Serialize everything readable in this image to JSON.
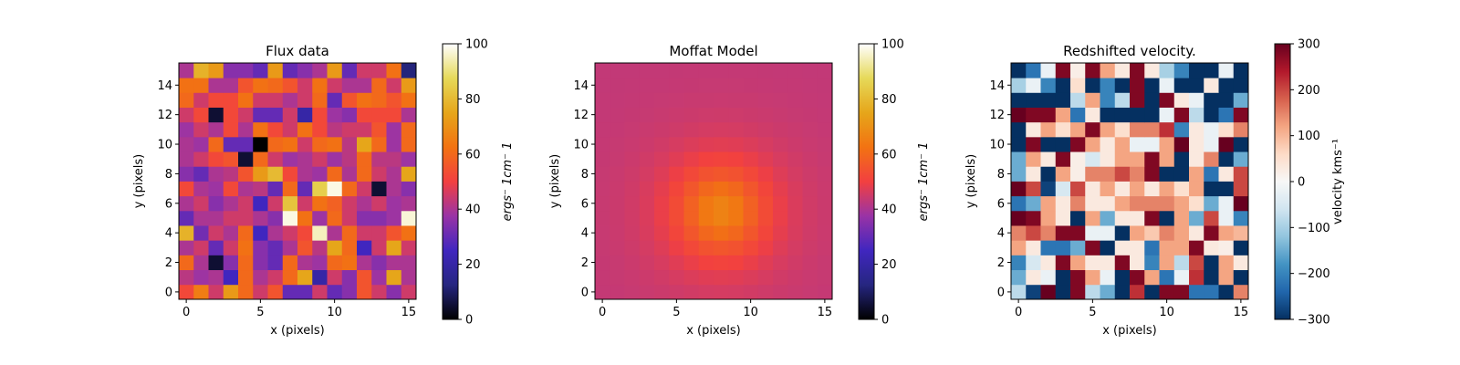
{
  "chart_data": [
    {
      "type": "heatmap",
      "title": "Flux data",
      "xlabel": "x (pixels)",
      "ylabel": "y (pixels)",
      "colorbar_label": "ergs^-1cm^-1",
      "colorbar_label_display": "ergs⁻ 1cm⁻ 1",
      "colormap": "CMRmap",
      "clim": [
        0,
        100
      ],
      "colorbar_ticks": [
        0,
        20,
        40,
        60,
        80,
        100
      ],
      "xlim": [
        -0.5,
        15.5
      ],
      "ylim": [
        -0.5,
        15.5
      ],
      "xticks": [
        0,
        5,
        10,
        15
      ],
      "yticks": [
        0,
        2,
        4,
        6,
        8,
        10,
        12,
        14
      ],
      "grid": false,
      "rows_bottom_to_top": [
        [
          52,
          65,
          45,
          72,
          60,
          45,
          55,
          30,
          30,
          45,
          30,
          35,
          55,
          45,
          35,
          45
        ],
        [
          42,
          38,
          40,
          25,
          60,
          40,
          45,
          60,
          75,
          20,
          45,
          35,
          55,
          38,
          75,
          40
        ],
        [
          60,
          40,
          5,
          35,
          60,
          35,
          30,
          60,
          40,
          38,
          60,
          62,
          40,
          35,
          40,
          40
        ],
        [
          40,
          45,
          30,
          45,
          62,
          35,
          30,
          40,
          55,
          42,
          75,
          60,
          25,
          45,
          75,
          45
        ],
        [
          78,
          32,
          45,
          40,
          60,
          25,
          40,
          45,
          52,
          95,
          40,
          60,
          45,
          45,
          55,
          62
        ],
        [
          30,
          40,
          40,
          45,
          45,
          40,
          35,
          98,
          62,
          38,
          60,
          45,
          35,
          35,
          38,
          97
        ],
        [
          40,
          45,
          35,
          40,
          45,
          25,
          45,
          82,
          45,
          62,
          58,
          45,
          40,
          45,
          38,
          40
        ],
        [
          52,
          40,
          38,
          52,
          40,
          42,
          30,
          60,
          30,
          85,
          98,
          60,
          45,
          5,
          40,
          35
        ],
        [
          35,
          30,
          40,
          42,
          55,
          72,
          80,
          52,
          40,
          38,
          60,
          40,
          60,
          45,
          40,
          75
        ],
        [
          40,
          45,
          52,
          55,
          5,
          60,
          45,
          38,
          40,
          45,
          38,
          42,
          60,
          42,
          42,
          38
        ],
        [
          40,
          38,
          60,
          30,
          30,
          0,
          60,
          62,
          45,
          60,
          62,
          42,
          75,
          60,
          38,
          60
        ],
        [
          38,
          45,
          40,
          52,
          40,
          62,
          52,
          45,
          62,
          52,
          42,
          45,
          45,
          55,
          38,
          60
        ],
        [
          45,
          52,
          5,
          52,
          45,
          30,
          30,
          45,
          20,
          52,
          38,
          35,
          52,
          52,
          52,
          40
        ],
        [
          60,
          45,
          52,
          52,
          62,
          45,
          45,
          40,
          45,
          60,
          30,
          55,
          62,
          60,
          55,
          62
        ],
        [
          62,
          62,
          40,
          40,
          55,
          62,
          60,
          55,
          45,
          62,
          45,
          40,
          40,
          60,
          45,
          72
        ],
        [
          40,
          78,
          72,
          35,
          35,
          30,
          72,
          30,
          35,
          40,
          72,
          30,
          45,
          45,
          62,
          12
        ]
      ]
    },
    {
      "type": "heatmap",
      "title": "Moffat Model",
      "xlabel": "x (pixels)",
      "ylabel": "y (pixels)",
      "colorbar_label": "ergs^-1cm^-1",
      "colorbar_label_display": "ergs⁻ 1cm⁻ 1",
      "colormap": "CMRmap",
      "clim": [
        0,
        100
      ],
      "colorbar_ticks": [
        0,
        20,
        40,
        60,
        80,
        100
      ],
      "xlim": [
        -0.5,
        15.5
      ],
      "ylim": [
        -0.5,
        15.5
      ],
      "xticks": [
        0,
        5,
        10,
        15
      ],
      "yticks": [
        0,
        2,
        4,
        6,
        8,
        10,
        12,
        14
      ],
      "grid": false,
      "model": {
        "function": "moffat",
        "center_x": 8,
        "center_y": 5.5,
        "amplitude": 24,
        "background": 43,
        "alpha": 4,
        "beta": 2
      }
    },
    {
      "type": "heatmap",
      "title": "Redshifted velocity.",
      "xlabel": "x (pixels)",
      "ylabel": "y (pixels)",
      "colorbar_label": "velocity kms^-1",
      "colorbar_label_display": "velocity kms⁻¹",
      "colormap": "RdBu_r",
      "clim": [
        -300,
        300
      ],
      "colorbar_ticks": [
        -300,
        -200,
        -100,
        0,
        100,
        200,
        300
      ],
      "colorbar_tick_labels": [
        "−300",
        "−200",
        "−100",
        "0",
        "100",
        "200",
        "300"
      ],
      "xlim": [
        -0.5,
        15.5
      ],
      "ylim": [
        -0.5,
        15.5
      ],
      "xticks": [
        0,
        5,
        10,
        15
      ],
      "yticks": [
        0,
        2,
        4,
        6,
        8,
        10,
        12,
        14
      ],
      "grid": false,
      "rows_bottom_to_top": [
        [
          -80,
          -280,
          300,
          -300,
          280,
          -80,
          -150,
          -300,
          220,
          -300,
          280,
          280,
          -220,
          -220,
          -300,
          150
        ],
        [
          -150,
          30,
          -20,
          -300,
          280,
          120,
          -20,
          -300,
          280,
          120,
          -220,
          -20,
          220,
          -300,
          120,
          -300
        ],
        [
          -200,
          -50,
          30,
          280,
          120,
          30,
          30,
          280,
          30,
          -200,
          120,
          -80,
          200,
          -300,
          120,
          30
        ],
        [
          120,
          30,
          -220,
          -220,
          -150,
          280,
          -300,
          30,
          30,
          -220,
          120,
          120,
          280,
          30,
          20,
          -300
        ],
        [
          150,
          200,
          150,
          280,
          280,
          -20,
          -20,
          -300,
          120,
          80,
          150,
          120,
          30,
          280,
          120,
          100
        ],
        [
          300,
          280,
          120,
          30,
          -300,
          120,
          -150,
          30,
          30,
          280,
          -300,
          120,
          -150,
          200,
          -20,
          -200
        ],
        [
          -220,
          -150,
          120,
          30,
          150,
          30,
          30,
          120,
          150,
          150,
          150,
          120,
          50,
          -150,
          -20,
          300
        ],
        [
          300,
          200,
          -280,
          -50,
          200,
          30,
          120,
          30,
          120,
          30,
          120,
          50,
          120,
          -300,
          -300,
          200
        ],
        [
          -150,
          30,
          -300,
          120,
          20,
          150,
          150,
          200,
          150,
          280,
          -300,
          -300,
          120,
          -220,
          30,
          200
        ],
        [
          -150,
          120,
          30,
          280,
          20,
          -50,
          30,
          120,
          120,
          280,
          120,
          -300,
          30,
          150,
          -300,
          -150
        ],
        [
          -300,
          280,
          -300,
          -300,
          280,
          120,
          30,
          120,
          -20,
          -20,
          120,
          300,
          30,
          -20,
          300,
          -300
        ],
        [
          -300,
          30,
          120,
          50,
          120,
          280,
          120,
          50,
          150,
          150,
          220,
          -200,
          30,
          -20,
          50,
          150
        ],
        [
          300,
          280,
          280,
          120,
          -220,
          30,
          -300,
          -300,
          -300,
          -300,
          -20,
          280,
          -80,
          -300,
          -220,
          280
        ],
        [
          -300,
          -300,
          -300,
          -300,
          -80,
          120,
          -200,
          -80,
          280,
          -300,
          280,
          30,
          -20,
          -300,
          -300,
          -150
        ],
        [
          -100,
          -20,
          -200,
          -300,
          50,
          -300,
          -200,
          -300,
          280,
          -300,
          -20,
          -300,
          -300,
          30,
          -300,
          -300
        ],
        [
          -300,
          -220,
          -20,
          280,
          20,
          280,
          120,
          30,
          280,
          30,
          -100,
          -200,
          -300,
          -300,
          -20,
          -300
        ]
      ]
    }
  ]
}
